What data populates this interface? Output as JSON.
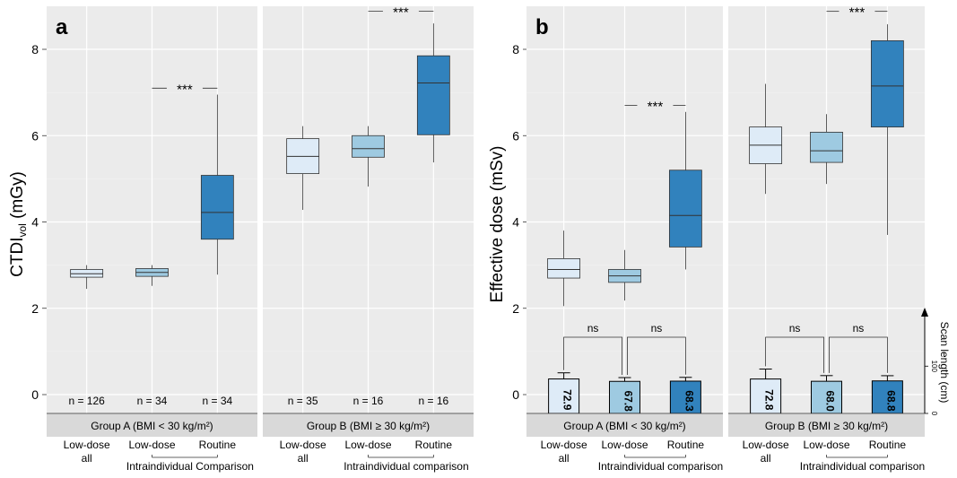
{
  "chart_data": [
    {
      "type": "boxplot",
      "panel_label": "a",
      "ylabel_main": "CTDI",
      "ylabel_sub": "vol",
      "ylabel_unit": "(mGy)",
      "ylim": [
        0,
        8.8
      ],
      "yticks": [
        "0",
        "2",
        "4",
        "6",
        "8"
      ],
      "ytick_values": [
        0,
        2,
        4,
        6,
        8
      ],
      "groups": [
        {
          "label": "Group A (BMI < 30 kg/m²)",
          "categories": [
            "Low-dose\nall",
            "Low-dose",
            "Routine"
          ],
          "comparison_label": "Intraindividual Comparison",
          "boxes": [
            {
              "n": "n = 126",
              "min": 2.45,
              "q1": 2.72,
              "median": 2.8,
              "q3": 2.9,
              "max": 3.0,
              "color": "#deebf7"
            },
            {
              "n": "n = 34",
              "min": 2.52,
              "q1": 2.74,
              "median": 2.83,
              "q3": 2.92,
              "max": 3.0,
              "color": "#9ecae1"
            },
            {
              "n": "n = 34",
              "min": 2.78,
              "q1": 3.6,
              "median": 4.22,
              "q3": 5.08,
              "max": 6.95,
              "color": "#3182bd"
            }
          ],
          "significance": {
            "label": "***",
            "y": 7.1
          }
        },
        {
          "label": "Group B (BMI ≥ 30 kg/m²)",
          "categories": [
            "Low-dose\nall",
            "Low-dose",
            "Routine"
          ],
          "comparison_label": "Intraindividual comparison",
          "boxes": [
            {
              "n": "n = 35",
              "min": 4.28,
              "q1": 5.12,
              "median": 5.52,
              "q3": 5.93,
              "max": 6.22,
              "color": "#deebf7"
            },
            {
              "n": "n = 16",
              "min": 4.82,
              "q1": 5.5,
              "median": 5.7,
              "q3": 6.0,
              "max": 6.22,
              "color": "#9ecae1"
            },
            {
              "n": "n = 16",
              "min": 5.38,
              "q1": 6.02,
              "median": 7.22,
              "q3": 7.85,
              "max": 8.6,
              "color": "#3182bd"
            }
          ],
          "significance": {
            "label": "***",
            "y": 8.88
          }
        }
      ]
    },
    {
      "type": "boxplot",
      "panel_label": "b",
      "ylabel_main": "Effective dose (mSv)",
      "ylim": [
        0,
        8.8
      ],
      "yticks": [
        "0",
        "2",
        "4",
        "6",
        "8"
      ],
      "ytick_values": [
        0,
        2,
        4,
        6,
        8
      ],
      "secondary_axis": {
        "label": "Scan length (cm)",
        "ticks": [
          "0",
          "100"
        ],
        "tick_values": [
          0,
          100
        ],
        "max": 220
      },
      "groups": [
        {
          "label": "Group A (BMI < 30 kg/m²)",
          "categories": [
            "Low-dose\nall",
            "Low-dose",
            "Routine"
          ],
          "comparison_label": "Intraindividual comparison",
          "boxes": [
            {
              "min": 2.05,
              "q1": 2.7,
              "median": 2.9,
              "q3": 3.15,
              "max": 3.8,
              "color": "#deebf7"
            },
            {
              "min": 2.18,
              "q1": 2.6,
              "median": 2.75,
              "q3": 2.9,
              "max": 3.35,
              "color": "#9ecae1"
            },
            {
              "min": 2.9,
              "q1": 3.42,
              "median": 4.15,
              "q3": 5.2,
              "max": 6.55,
              "color": "#3182bd"
            }
          ],
          "scan_length": [
            {
              "value": "72.9",
              "mean": 72.9,
              "err": 13,
              "color": "#deebf7"
            },
            {
              "value": "67.8",
              "mean": 67.8,
              "err": 8,
              "color": "#9ecae1"
            },
            {
              "value": "68.3",
              "mean": 68.3,
              "err": 8,
              "color": "#3182bd"
            }
          ],
          "ns_labels": [
            "ns",
            "ns"
          ],
          "significance": {
            "label": "***",
            "y": 6.7
          }
        },
        {
          "label": "Group B (BMI ≥ 30 kg/m²)",
          "categories": [
            "Low-dose\nall",
            "Low-dose",
            "Routine"
          ],
          "comparison_label": "Intraindividual comparison",
          "boxes": [
            {
              "min": 4.65,
              "q1": 5.35,
              "median": 5.78,
              "q3": 6.2,
              "max": 7.2,
              "color": "#deebf7"
            },
            {
              "min": 4.88,
              "q1": 5.38,
              "median": 5.65,
              "q3": 6.08,
              "max": 6.5,
              "color": "#9ecae1"
            },
            {
              "min": 3.7,
              "q1": 6.2,
              "median": 7.15,
              "q3": 8.2,
              "max": 8.58,
              "color": "#3182bd"
            }
          ],
          "scan_length": [
            {
              "value": "72.8",
              "mean": 72.8,
              "err": 21,
              "color": "#deebf7"
            },
            {
              "value": "68.0",
              "mean": 68.0,
              "err": 12,
              "color": "#9ecae1"
            },
            {
              "value": "68.8",
              "mean": 68.8,
              "err": 11,
              "color": "#3182bd"
            }
          ],
          "ns_labels": [
            "ns",
            "ns"
          ],
          "significance": {
            "label": "***",
            "y": 8.88
          }
        }
      ]
    }
  ]
}
